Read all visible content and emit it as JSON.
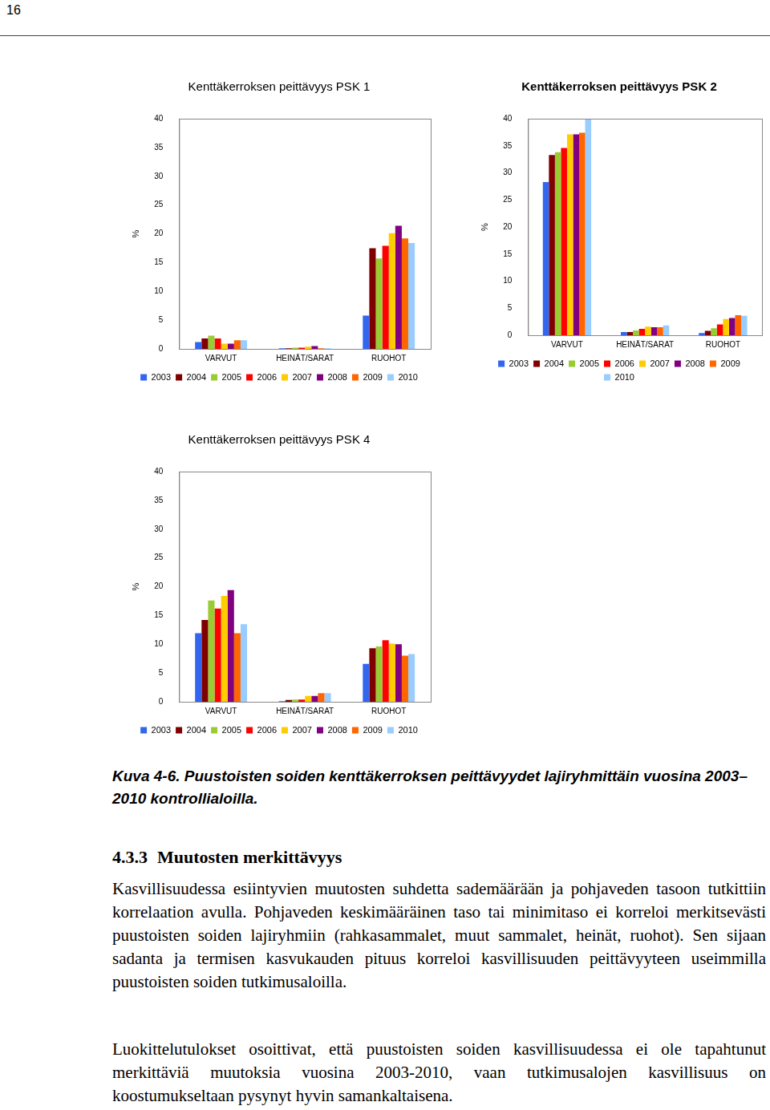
{
  "page_number": "16",
  "chart_data": [
    {
      "type": "bar",
      "title": "Kenttäkerroksen peittävyys PSK 1",
      "y_label": "%",
      "categories": [
        "VARVUT",
        "HEINÄT/SARAT",
        "RUOHOT"
      ],
      "series": [
        {
          "name": "2003",
          "color": "#3366ee",
          "values": [
            1.2,
            0.1,
            5.8
          ]
        },
        {
          "name": "2004",
          "color": "#800000",
          "values": [
            1.8,
            0.1,
            17.5
          ]
        },
        {
          "name": "2005",
          "color": "#99cc33",
          "values": [
            2.3,
            0.2,
            15.7
          ]
        },
        {
          "name": "2006",
          "color": "#ff0000",
          "values": [
            1.8,
            0.2,
            17.9
          ]
        },
        {
          "name": "2007",
          "color": "#ffcc00",
          "values": [
            0.9,
            0.4,
            20.1
          ]
        },
        {
          "name": "2008",
          "color": "#800080",
          "values": [
            0.9,
            0.5,
            21.4
          ]
        },
        {
          "name": "2009",
          "color": "#ff6600",
          "values": [
            1.5,
            0.1,
            19.2
          ]
        },
        {
          "name": "2010",
          "color": "#99ccff",
          "values": [
            1.5,
            0.1,
            18.4
          ]
        }
      ],
      "ylim": [
        0,
        40
      ],
      "yticks": [
        0,
        5,
        10,
        15,
        20,
        25,
        30,
        35,
        40
      ],
      "grid": false,
      "legend": "bottom"
    },
    {
      "type": "bar",
      "title": "Kenttäkerroksen peittävyys PSK 2",
      "y_label": "%",
      "categories": [
        "VARVUT",
        "HEINÄT/SARAT",
        "RUOHOT"
      ],
      "series": [
        {
          "name": "2003",
          "color": "#3366ee",
          "values": [
            28.3,
            0.6,
            0.4
          ]
        },
        {
          "name": "2004",
          "color": "#800000",
          "values": [
            33.3,
            0.6,
            0.8
          ]
        },
        {
          "name": "2005",
          "color": "#99cc33",
          "values": [
            33.8,
            0.9,
            1.3
          ]
        },
        {
          "name": "2006",
          "color": "#ff0000",
          "values": [
            34.6,
            1.2,
            2.0
          ]
        },
        {
          "name": "2007",
          "color": "#ffcc00",
          "values": [
            37.1,
            1.6,
            3.0
          ]
        },
        {
          "name": "2008",
          "color": "#800080",
          "values": [
            37.1,
            1.5,
            3.2
          ]
        },
        {
          "name": "2009",
          "color": "#ff6600",
          "values": [
            37.4,
            1.5,
            3.7
          ]
        },
        {
          "name": "2010",
          "color": "#99ccff",
          "values": [
            40,
            1.8,
            3.6
          ]
        }
      ],
      "ylim": [
        0,
        40
      ],
      "yticks": [
        0,
        5,
        10,
        15,
        20,
        25,
        30,
        35,
        40
      ],
      "grid": false,
      "legend": "bottom"
    },
    {
      "type": "bar",
      "title": "Kenttäkerroksen peittävyys PSK 4",
      "y_label": "%",
      "categories": [
        "VARVUT",
        "HEINÄT/SARAT",
        "RUOHOT"
      ],
      "series": [
        {
          "name": "2003",
          "color": "#3366ee",
          "values": [
            11.9,
            0.1,
            6.6
          ]
        },
        {
          "name": "2004",
          "color": "#800000",
          "values": [
            14.2,
            0.3,
            9.3
          ]
        },
        {
          "name": "2005",
          "color": "#99cc33",
          "values": [
            17.6,
            0.4,
            9.6
          ]
        },
        {
          "name": "2006",
          "color": "#ff0000",
          "values": [
            16.2,
            0.4,
            10.7
          ]
        },
        {
          "name": "2007",
          "color": "#ffcc00",
          "values": [
            18.4,
            1.0,
            10.1
          ]
        },
        {
          "name": "2008",
          "color": "#800080",
          "values": [
            19.4,
            1.0,
            10.0
          ]
        },
        {
          "name": "2009",
          "color": "#ff6600",
          "values": [
            11.9,
            1.5,
            8.0
          ]
        },
        {
          "name": "2010",
          "color": "#99ccff",
          "values": [
            13.5,
            1.5,
            8.3
          ]
        }
      ],
      "ylim": [
        0,
        40
      ],
      "yticks": [
        0,
        5,
        10,
        15,
        20,
        25,
        30,
        35,
        40
      ],
      "grid": false,
      "legend": "bottom"
    }
  ],
  "caption": {
    "label": "Kuva 4-6.",
    "text": "Puustoisten soiden kenttäkerroksen peittävyydet lajiryhmittäin vuosina 2003–2010 kontrollialoilla."
  },
  "section": {
    "number": "4.3.3",
    "title": "Muutosten merkittävyys"
  },
  "paragraphs": [
    "Kasvillisuudessa esiintyvien muutosten suhdetta sademäärään ja pohjaveden tasoon tutkittiin korrelaation avulla. Pohjaveden keskimääräinen taso tai minimitaso ei korreloi merkitsevästi puustoisten soiden lajiryhmiin (rahkasammalet, muut sammalet, heinät, ruohot). Sen sijaan sadanta ja termisen kasvukauden pituus korreloi kasvillisuuden peittävyyteen useimmilla puustoisten soiden tutkimusaloilla.",
    "Luokittelutulokset osoittivat, että puustoisten soiden kasvillisuudessa ei ole tapahtunut merkittäviä muutoksia vuosina 2003-2010, vaan tutkimusalojen kasvillisuus on koostumukseltaan pysynyt hyvin samankaltaisena."
  ]
}
